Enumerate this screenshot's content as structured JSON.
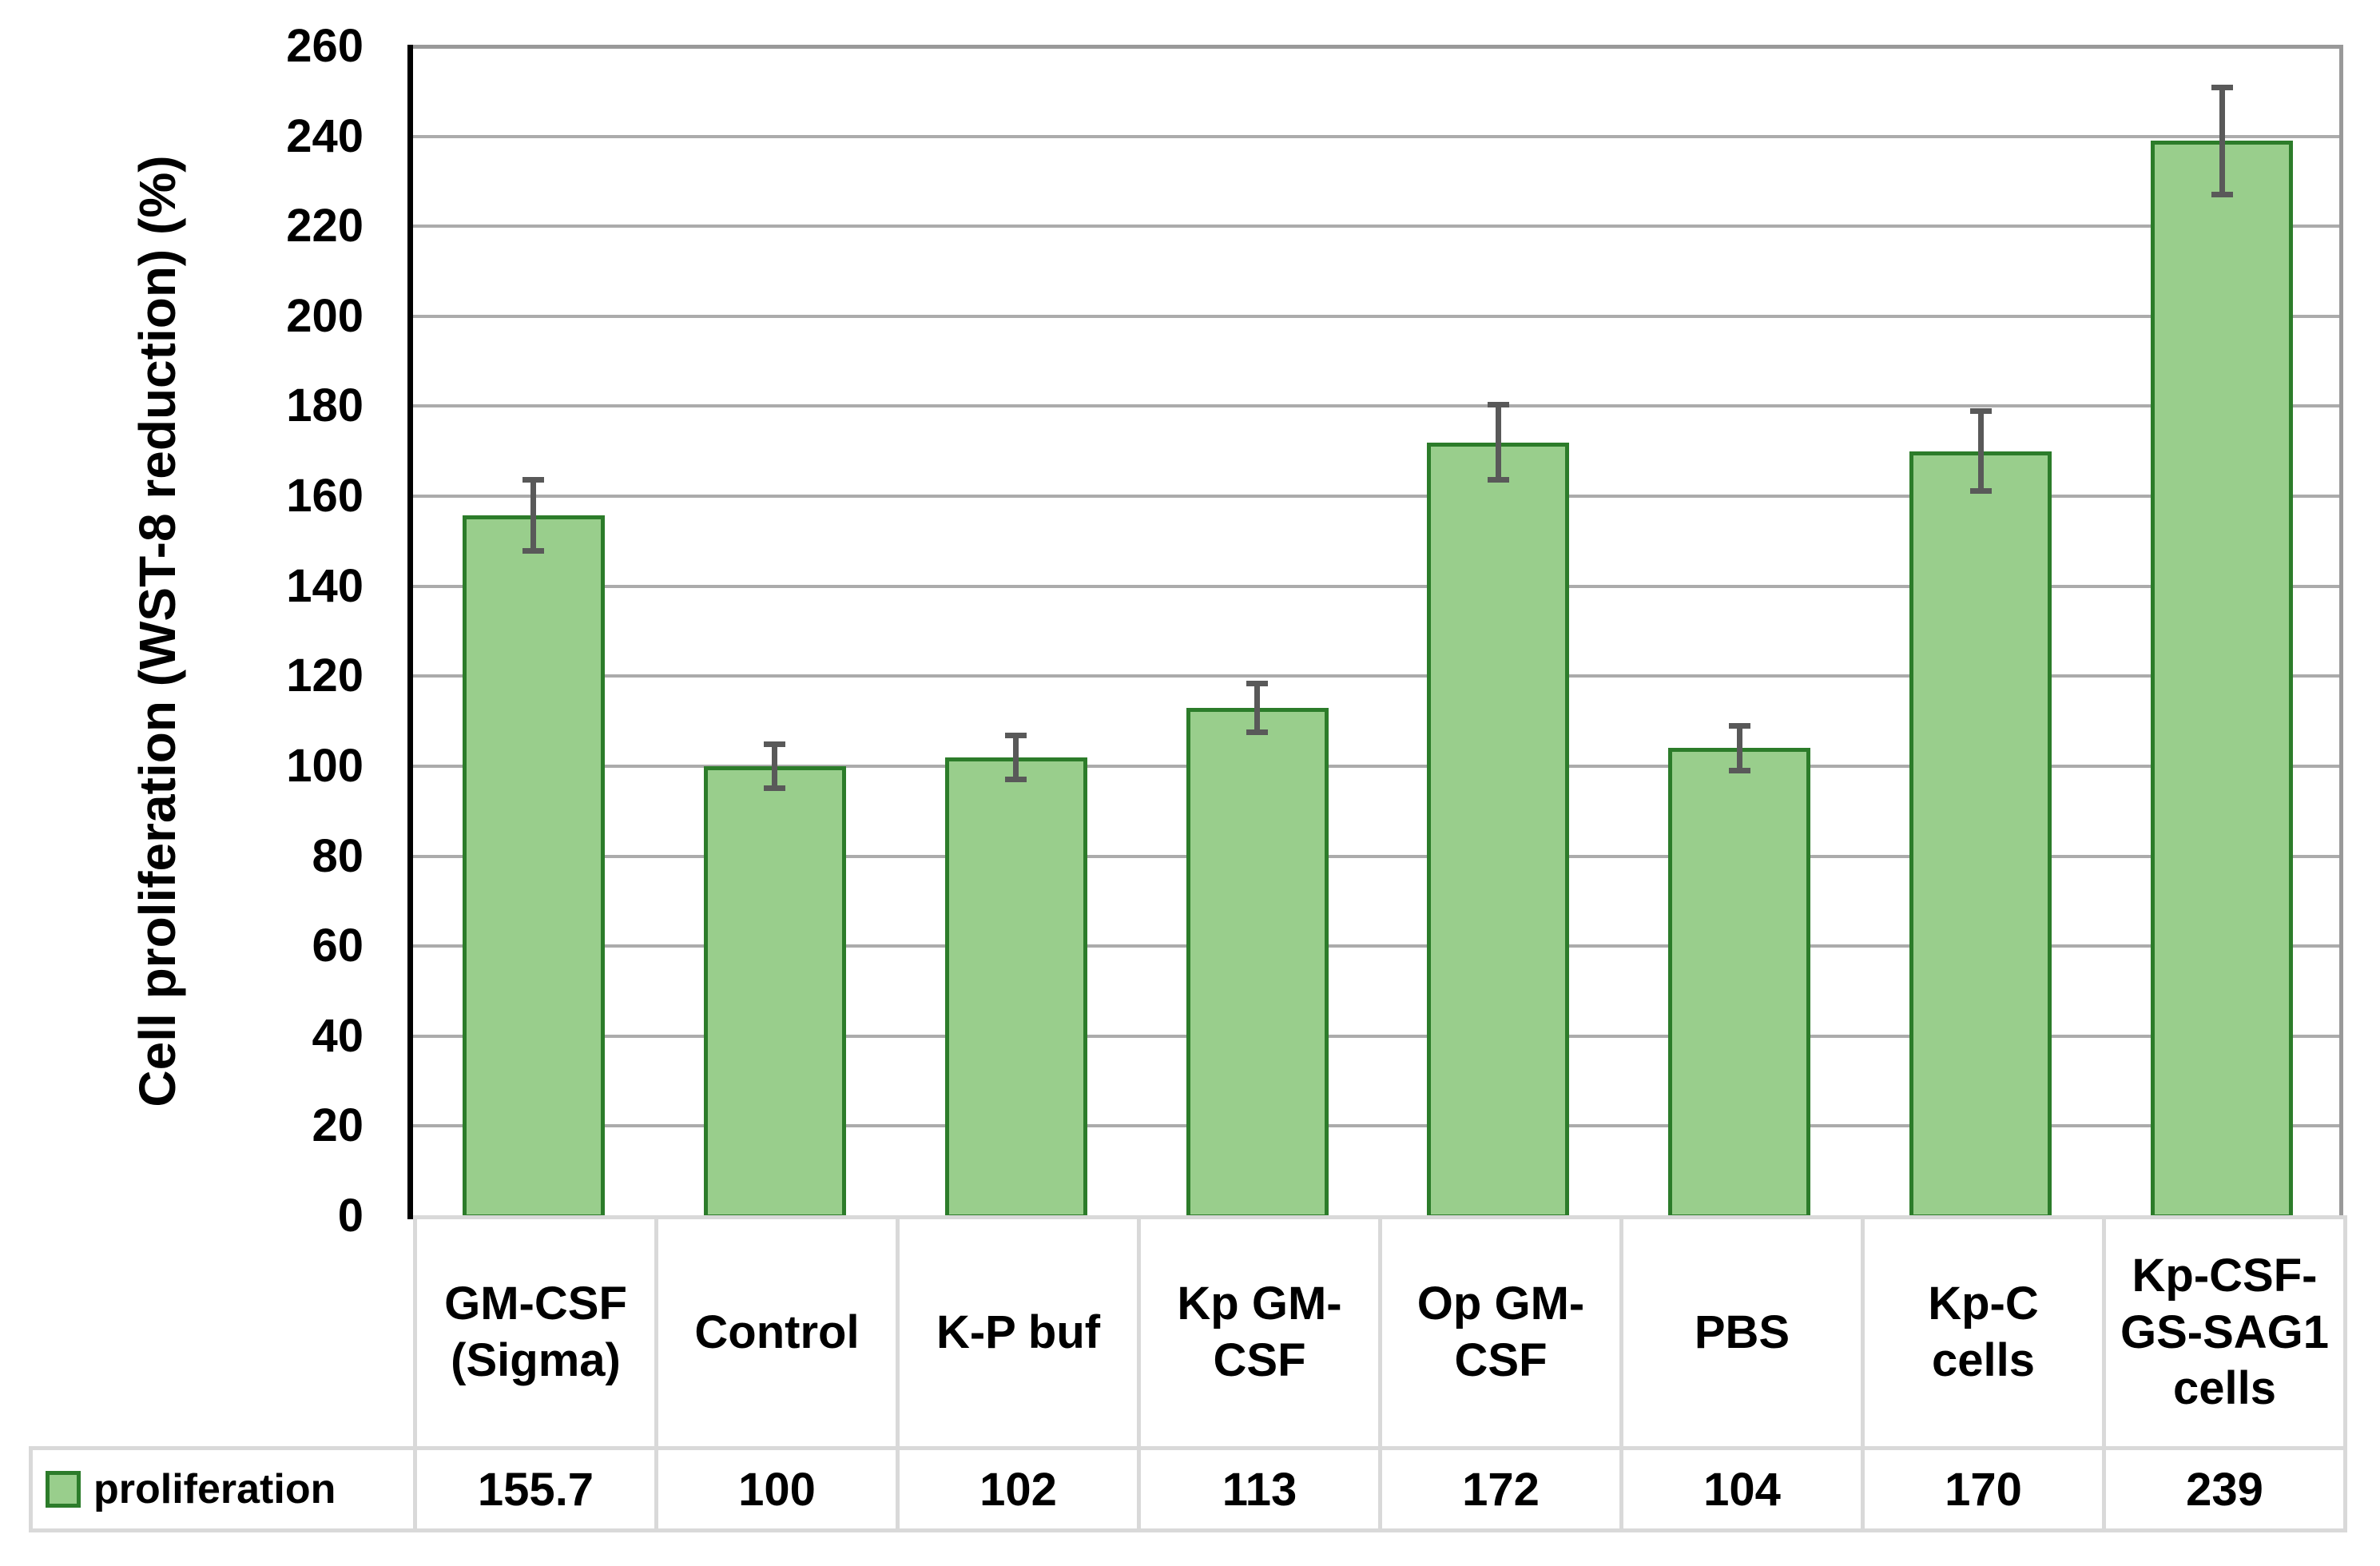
{
  "chart_data": {
    "type": "bar",
    "title": "",
    "ylabel": "Cell proliferation (WST-8 reduction) (%)",
    "xlabel": "",
    "categories": [
      "GM-CSF\n(Sigma)",
      "Control",
      "K-P buf",
      "Kp GM-\nCSF",
      "Op GM-\nCSF",
      "PBS",
      "Kp-C\ncells",
      "Kp-CSF-\nGS-SAG1\ncells"
    ],
    "series": [
      {
        "name": "proliferation",
        "values": [
          155.7,
          100,
          102,
          113,
          172,
          104,
          170,
          239
        ],
        "error_bars_plus_minus": [
          8,
          5,
          5,
          5.5,
          8.5,
          5,
          9,
          12
        ],
        "display_values": [
          "155.7",
          "100",
          "102",
          "113",
          "172",
          "104",
          "170",
          "239"
        ]
      }
    ],
    "ylim": [
      0,
      260
    ],
    "ytick_step": 20,
    "yticks": [
      0,
      20,
      40,
      60,
      80,
      100,
      120,
      140,
      160,
      180,
      200,
      220,
      240,
      260
    ],
    "grid": "horizontal",
    "legend_position": "table-row-left",
    "colors": {
      "bar_fill": "#99CE8C",
      "bar_border": "#2C7C2A",
      "error_bar": "#595959",
      "gridline": "#ABABAB",
      "plot_border": "#999999",
      "axis_line": "#000000",
      "table_border": "#D9D9D9",
      "text": "#000000",
      "background": "#FFFFFF"
    }
  }
}
